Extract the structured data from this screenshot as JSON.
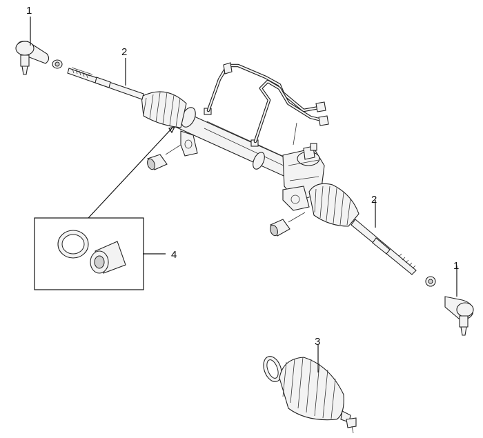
{
  "callouts": {
    "tie_rod_end_left": "1",
    "tie_rod_end_right": "1",
    "tie_rod_left": "2",
    "tie_rod_right": "2",
    "bellows_kit": "3",
    "bushing_kit": "4"
  }
}
